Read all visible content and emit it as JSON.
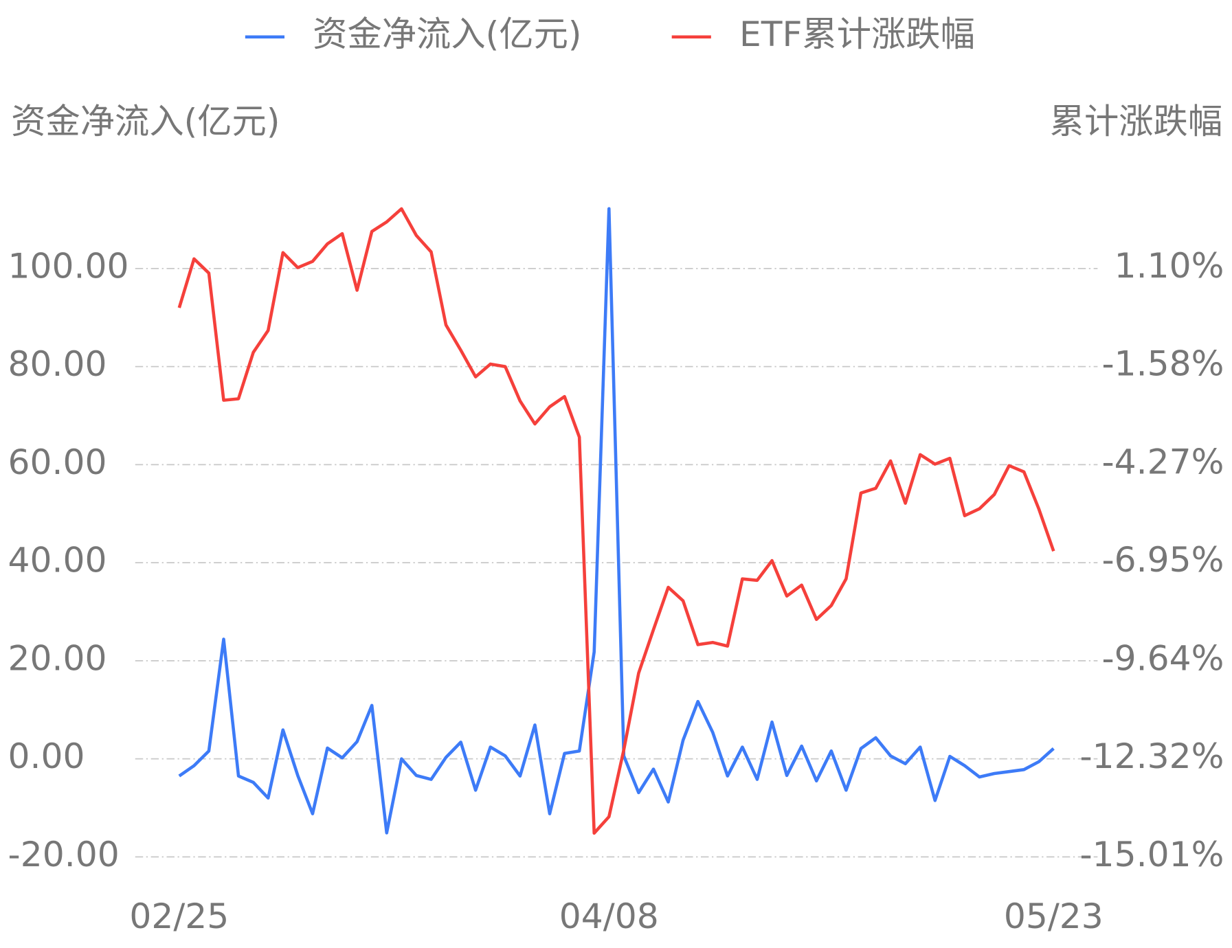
{
  "chart_data": {
    "type": "line",
    "categories": [
      "02/25",
      null,
      null,
      null,
      null,
      null,
      null,
      null,
      null,
      null,
      null,
      null,
      null,
      null,
      null,
      null,
      null,
      null,
      null,
      null,
      null,
      null,
      null,
      null,
      null,
      null,
      null,
      null,
      null,
      "04/08",
      null,
      null,
      null,
      null,
      null,
      null,
      null,
      null,
      null,
      null,
      null,
      null,
      null,
      null,
      null,
      null,
      null,
      null,
      null,
      null,
      null,
      null,
      null,
      null,
      null,
      null,
      null,
      null,
      null,
      "05/23"
    ],
    "y_label": "资金净流入(亿元)",
    "y2_label": "累计涨跌幅",
    "ylim": [
      -20,
      120
    ],
    "yticks": [
      {
        "value": -20,
        "label": "-20.00"
      },
      {
        "value": 0,
        "label": "0.00"
      },
      {
        "value": 20,
        "label": "20.00"
      },
      {
        "value": 40,
        "label": "40.00"
      },
      {
        "value": 60,
        "label": "60.00"
      },
      {
        "value": 80,
        "label": "80.00"
      },
      {
        "value": 100,
        "label": "100.00"
      }
    ],
    "y2lim": [
      -15.01,
      3.78
    ],
    "y2ticks": [
      {
        "value": -15.01,
        "label": "-15.01%"
      },
      {
        "value": -12.32,
        "label": "-12.32%"
      },
      {
        "value": -9.64,
        "label": "-9.64%"
      },
      {
        "value": -6.95,
        "label": "-6.95%"
      },
      {
        "value": -4.27,
        "label": "-4.27%"
      },
      {
        "value": -1.58,
        "label": "-1.58%"
      },
      {
        "value": 1.1,
        "label": "1.10%"
      }
    ],
    "grid": true,
    "legend": "top",
    "series": [
      {
        "name": "资金净流入(亿元)",
        "color": "#3d7bf7",
        "values": [
          -3.5,
          -1.4,
          1.6,
          24.4,
          -3.5,
          -4.8,
          -8.0,
          5.9,
          -3.4,
          -11.2,
          2.2,
          0.2,
          3.5,
          10.9,
          -15.1,
          0,
          -3.4,
          -4.2,
          0.3,
          3.4,
          -6.4,
          2.4,
          0.6,
          -3.5,
          6.9,
          -11.2,
          1.1,
          1.6,
          21.8,
          112.2,
          0.6,
          -6.9,
          -2.1,
          -8.8,
          3.8,
          11.7,
          5.4,
          -3.5,
          2.4,
          -4.2,
          7.5,
          -3.4,
          2.6,
          -4.5,
          1.6,
          -6.4,
          2.1,
          4.3,
          0.6,
          -1.0,
          2.4,
          -8.5,
          0.5,
          -1.4,
          -3.7,
          -3.0,
          -2.6,
          -2.2,
          -0.6,
          2.1
        ]
      },
      {
        "name": "ETF累计涨跌幅",
        "color": "#f5403b",
        "axis": "y2",
        "values": [
          0.02,
          1.36,
          0.97,
          -2.51,
          -2.47,
          -1.2,
          -0.6,
          1.53,
          1.12,
          1.29,
          1.77,
          2.05,
          0.5,
          2.11,
          2.37,
          2.73,
          2.0,
          1.55,
          -0.45,
          -1.14,
          -1.87,
          -1.52,
          -1.59,
          -2.53,
          -3.16,
          -2.69,
          -2.41,
          -3.52,
          -14.36,
          -13.91,
          -12.08,
          -9.98,
          -8.79,
          -7.63,
          -8.0,
          -9.2,
          -9.14,
          -9.24,
          -7.4,
          -7.44,
          -6.9,
          -7.87,
          -7.57,
          -8.51,
          -8.13,
          -7.4,
          -5.05,
          -4.92,
          -4.17,
          -5.33,
          -4.0,
          -4.26,
          -4.1,
          -5.67,
          -5.48,
          -5.09,
          -4.3,
          -4.47,
          -5.48,
          -6.64
        ]
      }
    ]
  }
}
